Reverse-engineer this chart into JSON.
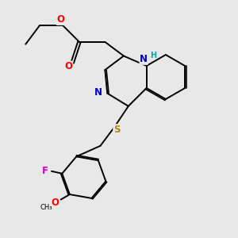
{
  "background_color": "#e8e8e8",
  "bond_color": "#000000",
  "bond_width": 1.4,
  "atom_colors": {
    "O": "#ff0000",
    "N": "#0000cd",
    "S": "#b8860b",
    "F": "#cc00cc",
    "NH": "#00aaaa",
    "C": "#000000"
  },
  "font_size": 8.5
}
